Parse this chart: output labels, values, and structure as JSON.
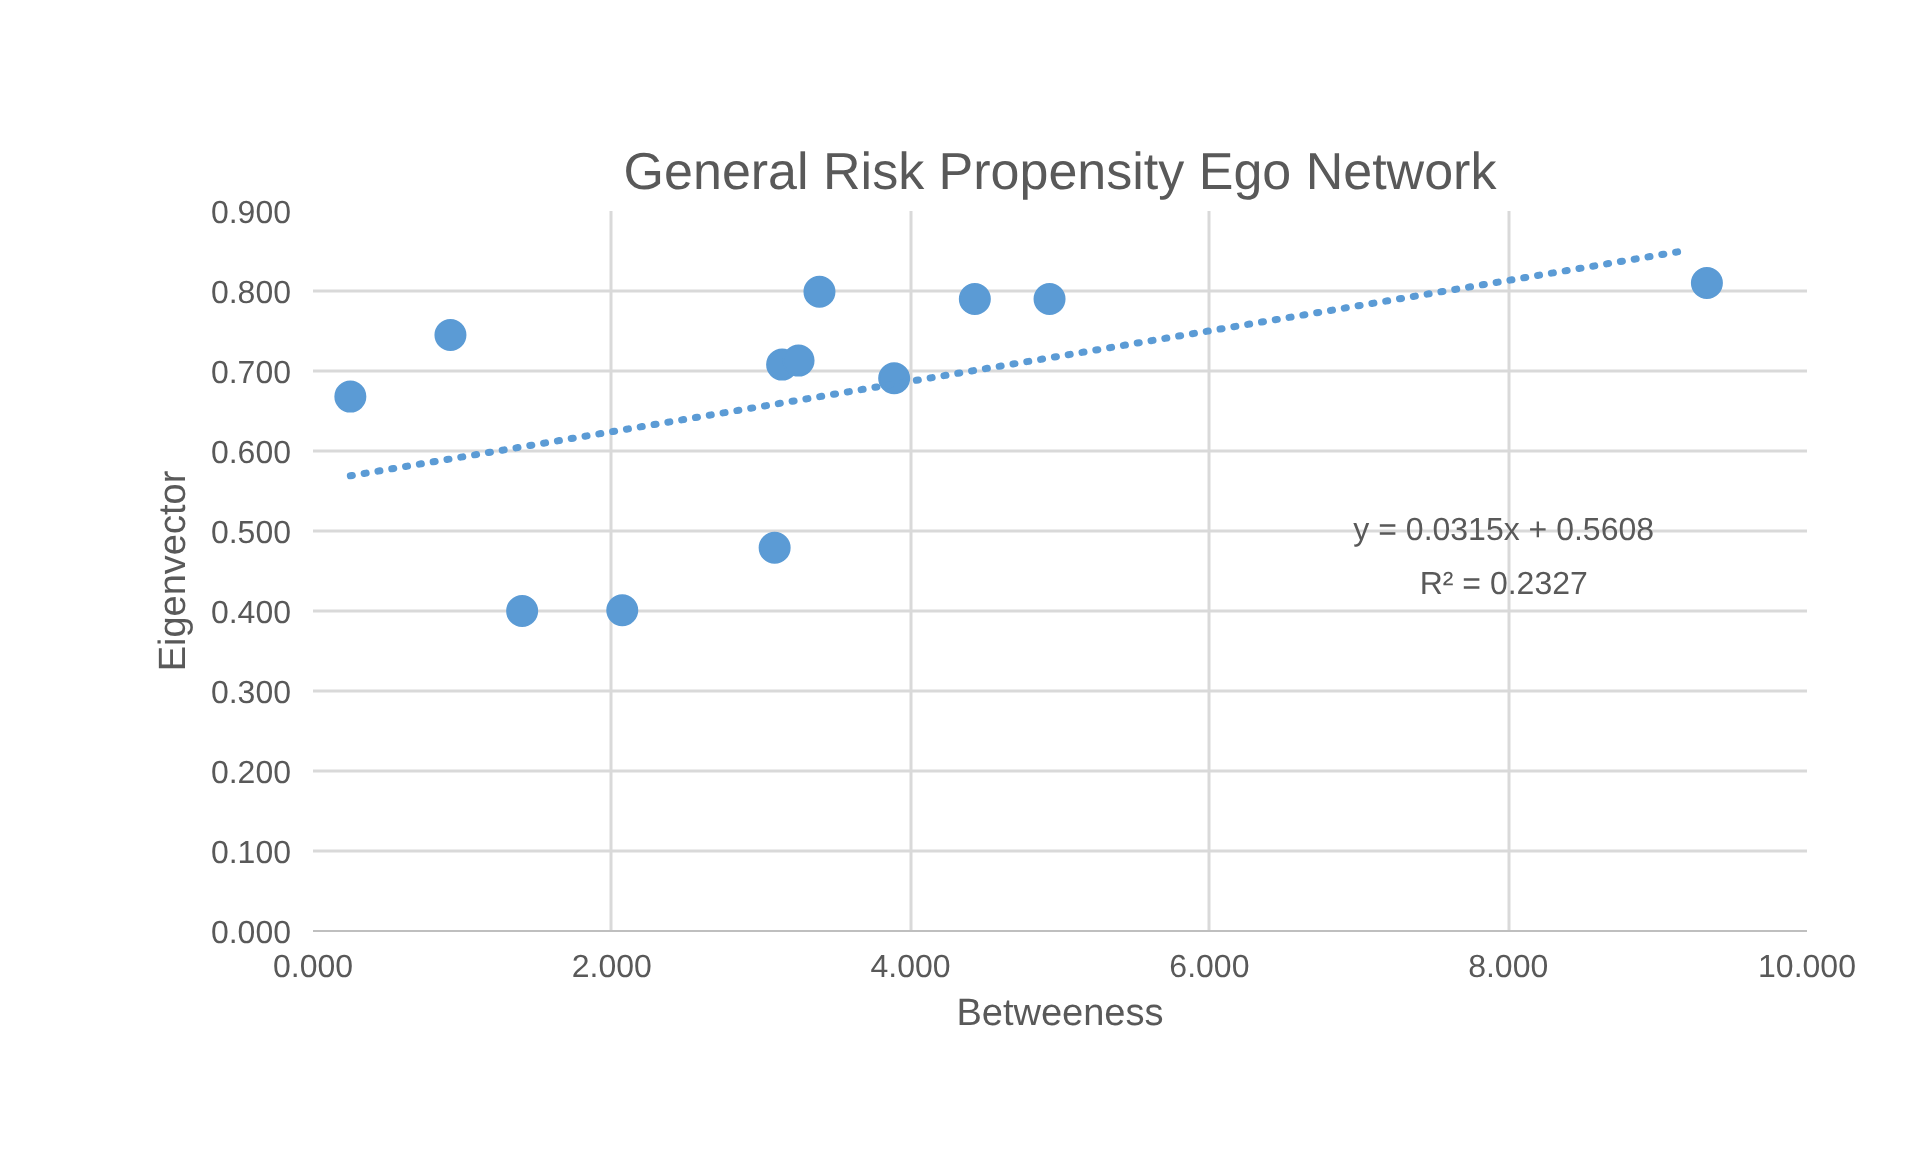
{
  "chart_data": {
    "type": "scatter",
    "title": "General Risk Propensity Ego Network",
    "xlabel": "Betweeness",
    "ylabel": "Eigenvector",
    "x": [
      0.25,
      0.92,
      1.4,
      2.07,
      3.09,
      3.14,
      3.25,
      3.39,
      3.89,
      4.43,
      4.93,
      9.33
    ],
    "series": [
      {
        "color": "#5b9bd5",
        "marker": "circle",
        "values": [
          0.668,
          0.745,
          0.4,
          0.401,
          0.479,
          0.708,
          0.713,
          0.799,
          0.691,
          0.79,
          0.79,
          0.81
        ]
      },
      {
        "type": "line",
        "line_style": "dotted",
        "color": "#5b9bd5",
        "x": [
          0.25,
          9.2
        ],
        "values": [
          0.569,
          0.851
        ]
      }
    ],
    "grid": true,
    "xlim": [
      0,
      10
    ],
    "ylim": [
      0,
      0.9
    ],
    "xticks": [
      {
        "value": 0,
        "label": "0.000"
      },
      {
        "value": 2,
        "label": "2.000"
      },
      {
        "value": 4,
        "label": "4.000"
      },
      {
        "value": 6,
        "label": "6.000"
      },
      {
        "value": 8,
        "label": "8.000"
      },
      {
        "value": 10,
        "label": "10.000"
      }
    ],
    "yticks": [
      {
        "value": 0,
        "label": "0.000"
      },
      {
        "value": 0.1,
        "label": "0.100"
      },
      {
        "value": 0.2,
        "label": "0.200"
      },
      {
        "value": 0.3,
        "label": "0.300"
      },
      {
        "value": 0.4,
        "label": "0.400"
      },
      {
        "value": 0.5,
        "label": "0.500"
      },
      {
        "value": 0.6,
        "label": "0.600"
      },
      {
        "value": 0.7,
        "label": "0.700"
      },
      {
        "value": 0.8,
        "label": "0.800"
      },
      {
        "value": 0.9,
        "label": "0.900"
      }
    ],
    "annotations": [
      "y = 0.0315x + 0.5608",
      "R² = 0.2327"
    ]
  }
}
